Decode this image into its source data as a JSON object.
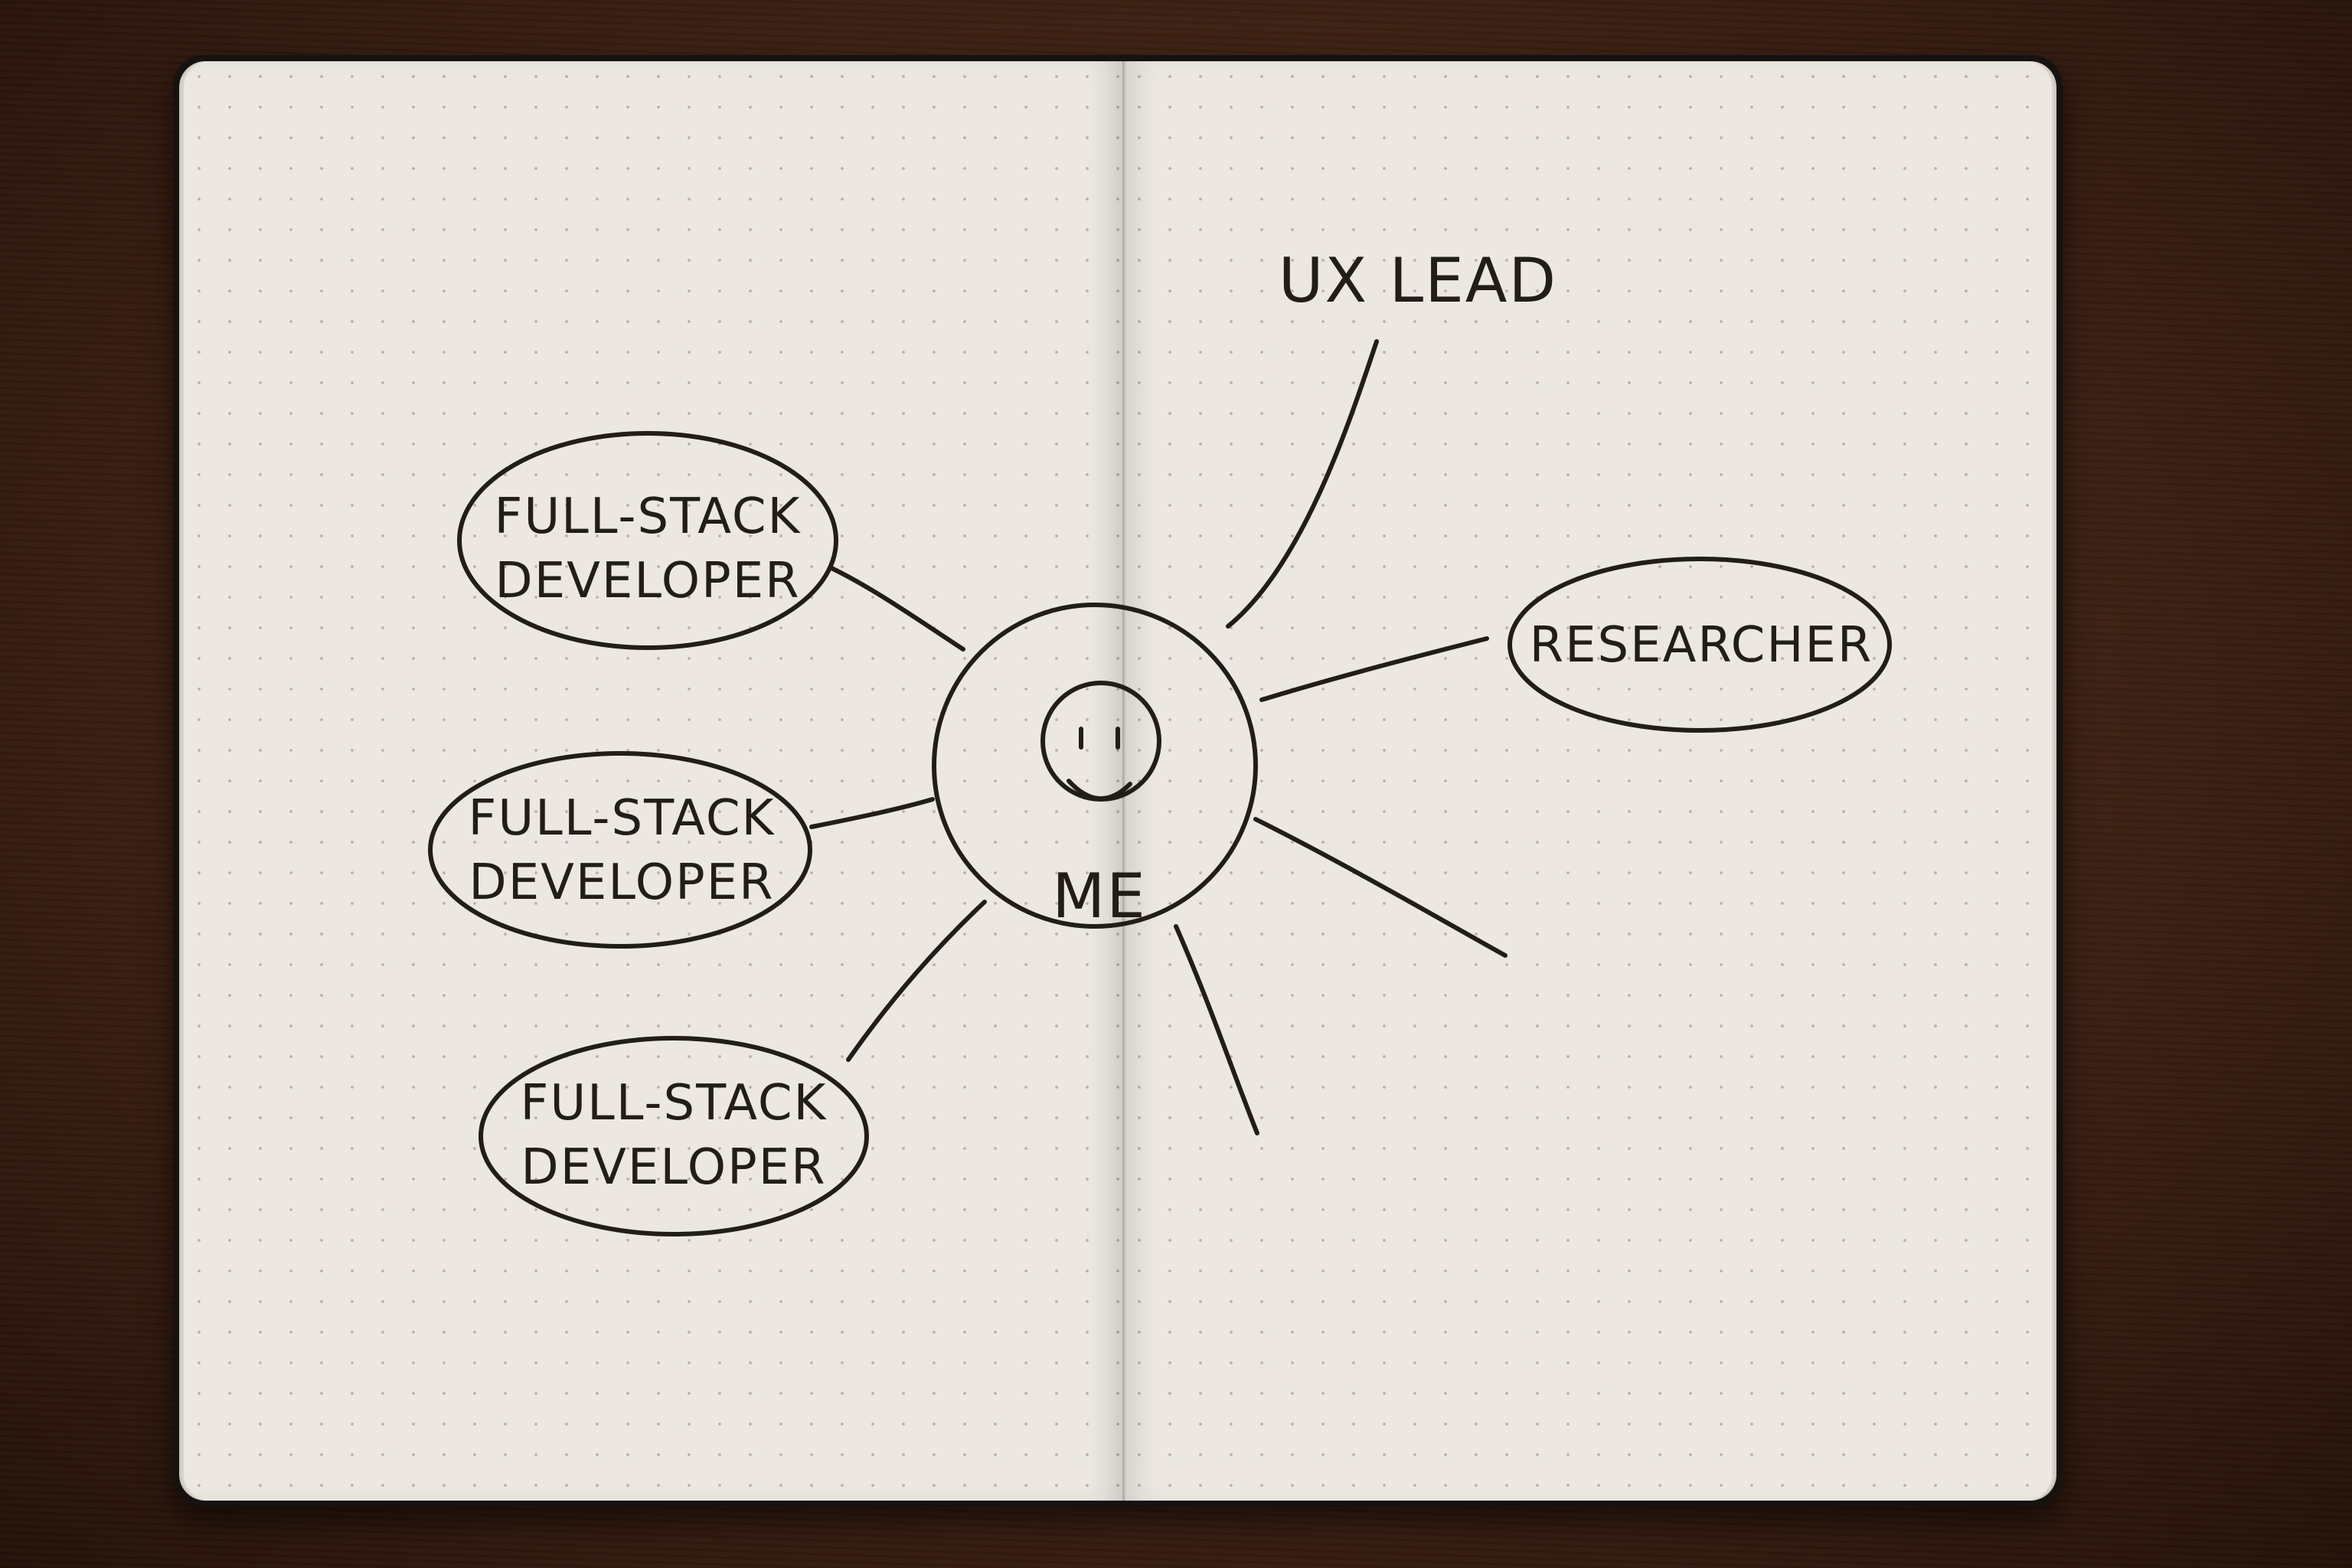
{
  "mind_map": {
    "center_label": "ME",
    "top_label": "UX LEAD",
    "right_label": "RESEARCHER",
    "nodes": [
      {
        "line1": "FULL-STACK",
        "line2": "DEVELOPER"
      },
      {
        "line1": "FULL-STACK",
        "line2": "DEVELOPER"
      },
      {
        "line1": "FULL-STACK",
        "line2": "DEVELOPER"
      }
    ]
  },
  "colors": {
    "ink": "#231d19",
    "paper": "#ece8e1",
    "desk": "#3e2114",
    "cover": "#151210"
  }
}
